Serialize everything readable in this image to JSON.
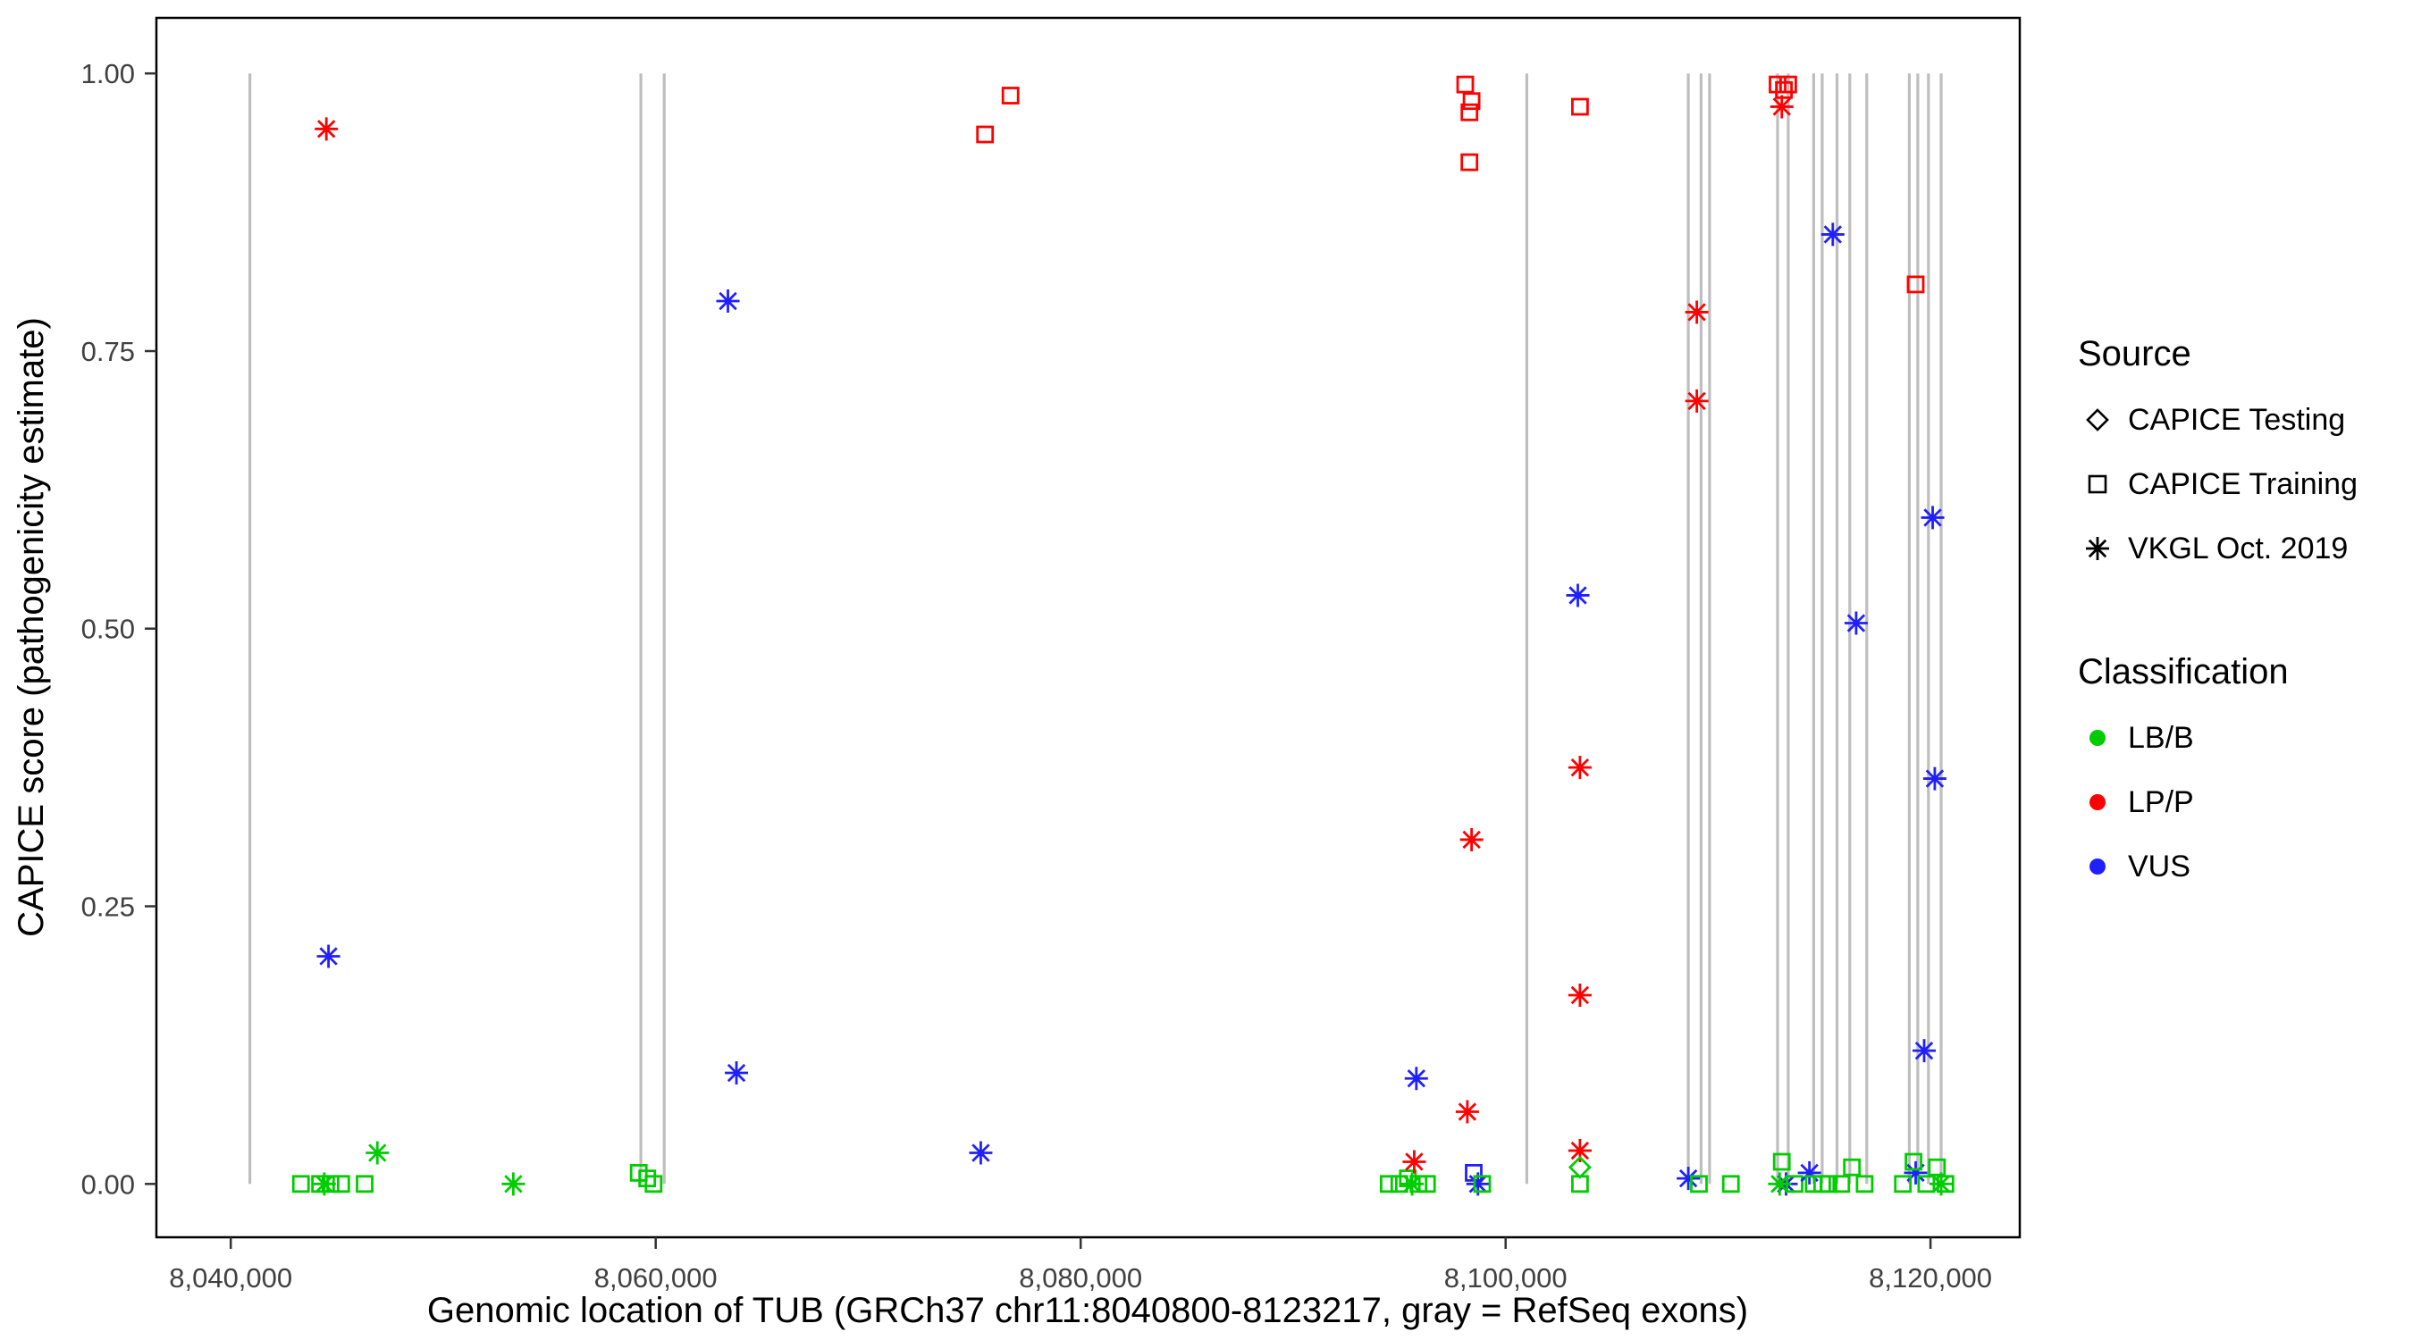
{
  "chart_data": {
    "type": "scatter",
    "title": "",
    "xlabel": "Genomic location of TUB (GRCh37 chr11:8040800-8123217, gray = RefSeq exons)",
    "ylabel": "CAPICE score (pathogenicity estimate)",
    "xlim": [
      8036500,
      8124200
    ],
    "ylim": [
      -0.048,
      1.05
    ],
    "grid": false,
    "legend_position": "right",
    "x_ticks": {
      "values": [
        8040000,
        8060000,
        8080000,
        8100000,
        8120000
      ],
      "labels": [
        "8,040,000",
        "8,060,000",
        "8,080,000",
        "8,100,000",
        "8,120,000"
      ]
    },
    "y_ticks": {
      "values": [
        0.0,
        0.25,
        0.5,
        0.75,
        1.0
      ],
      "labels": [
        "0.00",
        "0.25",
        "0.50",
        "0.75",
        "1.00"
      ]
    },
    "exon_color": "#BEBEBE",
    "exons": [
      8040900,
      8059300,
      8060400,
      8101000,
      8108600,
      8109200,
      8109600,
      8112800,
      8113300,
      8114500,
      8114900,
      8115600,
      8116200,
      8117000,
      8119000,
      8119400,
      8119900,
      8120500
    ],
    "class_colors": {
      "LB/B": "#00CC00",
      "LP/P": "#FF0000",
      "VUS": "#2020FF"
    },
    "source_shapes": {
      "CAPICE Testing": "diamond-open",
      "CAPICE Training": "square-open",
      "VKGL Oct. 2019": "asterisk"
    },
    "legend": {
      "source": {
        "title": "Source",
        "items": [
          "CAPICE Testing",
          "CAPICE Training",
          "VKGL Oct. 2019"
        ]
      },
      "classification": {
        "title": "Classification",
        "items": [
          "LB/B",
          "LP/P",
          "VUS"
        ]
      }
    },
    "points": [
      {
        "x": 8044500,
        "y": 0.95,
        "source": "VKGL Oct. 2019",
        "classification": "LP/P"
      },
      {
        "x": 8044600,
        "y": 0.205,
        "source": "VKGL Oct. 2019",
        "classification": "VUS"
      },
      {
        "x": 8043300,
        "y": 0.0,
        "source": "CAPICE Training",
        "classification": "LB/B"
      },
      {
        "x": 8044200,
        "y": 0.0,
        "source": "CAPICE Training",
        "classification": "LB/B"
      },
      {
        "x": 8044700,
        "y": 0.0,
        "source": "CAPICE Training",
        "classification": "LB/B"
      },
      {
        "x": 8045200,
        "y": 0.0,
        "source": "CAPICE Training",
        "classification": "LB/B"
      },
      {
        "x": 8046300,
        "y": 0.0,
        "source": "CAPICE Training",
        "classification": "LB/B"
      },
      {
        "x": 8044400,
        "y": 0.0,
        "source": "VKGL Oct. 2019",
        "classification": "LB/B"
      },
      {
        "x": 8046900,
        "y": 0.028,
        "source": "VKGL Oct. 2019",
        "classification": "LB/B"
      },
      {
        "x": 8053300,
        "y": 0.0,
        "source": "VKGL Oct. 2019",
        "classification": "LB/B"
      },
      {
        "x": 8059200,
        "y": 0.01,
        "source": "CAPICE Training",
        "classification": "LB/B"
      },
      {
        "x": 8059600,
        "y": 0.005,
        "source": "CAPICE Training",
        "classification": "LB/B"
      },
      {
        "x": 8059900,
        "y": 0.0,
        "source": "CAPICE Training",
        "classification": "LB/B"
      },
      {
        "x": 8063400,
        "y": 0.795,
        "source": "VKGL Oct. 2019",
        "classification": "VUS"
      },
      {
        "x": 8063800,
        "y": 0.1,
        "source": "VKGL Oct. 2019",
        "classification": "VUS"
      },
      {
        "x": 8075500,
        "y": 0.945,
        "source": "CAPICE Training",
        "classification": "LP/P"
      },
      {
        "x": 8076700,
        "y": 0.98,
        "source": "CAPICE Training",
        "classification": "LP/P"
      },
      {
        "x": 8075300,
        "y": 0.028,
        "source": "VKGL Oct. 2019",
        "classification": "VUS"
      },
      {
        "x": 8094500,
        "y": 0.0,
        "source": "CAPICE Training",
        "classification": "LB/B"
      },
      {
        "x": 8095000,
        "y": 0.0,
        "source": "CAPICE Training",
        "classification": "LB/B"
      },
      {
        "x": 8095400,
        "y": 0.005,
        "source": "CAPICE Training",
        "classification": "LB/B"
      },
      {
        "x": 8095900,
        "y": 0.0,
        "source": "CAPICE Training",
        "classification": "LB/B"
      },
      {
        "x": 8096300,
        "y": 0.0,
        "source": "CAPICE Training",
        "classification": "LB/B"
      },
      {
        "x": 8095600,
        "y": 0.0,
        "source": "VKGL Oct. 2019",
        "classification": "LB/B"
      },
      {
        "x": 8095700,
        "y": 0.02,
        "source": "VKGL Oct. 2019",
        "classification": "LP/P"
      },
      {
        "x": 8095800,
        "y": 0.095,
        "source": "VKGL Oct. 2019",
        "classification": "VUS"
      },
      {
        "x": 8098200,
        "y": 0.065,
        "source": "VKGL Oct. 2019",
        "classification": "LP/P"
      },
      {
        "x": 8098400,
        "y": 0.31,
        "source": "VKGL Oct. 2019",
        "classification": "LP/P"
      },
      {
        "x": 8098100,
        "y": 0.99,
        "source": "CAPICE Training",
        "classification": "LP/P"
      },
      {
        "x": 8098400,
        "y": 0.975,
        "source": "CAPICE Training",
        "classification": "LP/P"
      },
      {
        "x": 8098300,
        "y": 0.965,
        "source": "CAPICE Training",
        "classification": "LP/P"
      },
      {
        "x": 8098300,
        "y": 0.92,
        "source": "CAPICE Training",
        "classification": "LP/P"
      },
      {
        "x": 8098500,
        "y": 0.01,
        "source": "CAPICE Training",
        "classification": "VUS"
      },
      {
        "x": 8098700,
        "y": 0.0,
        "source": "VKGL Oct. 2019",
        "classification": "VUS"
      },
      {
        "x": 8098900,
        "y": 0.0,
        "source": "CAPICE Training",
        "classification": "LB/B"
      },
      {
        "x": 8103500,
        "y": 0.97,
        "source": "CAPICE Training",
        "classification": "LP/P"
      },
      {
        "x": 8103400,
        "y": 0.53,
        "source": "VKGL Oct. 2019",
        "classification": "VUS"
      },
      {
        "x": 8103500,
        "y": 0.375,
        "source": "VKGL Oct. 2019",
        "classification": "LP/P"
      },
      {
        "x": 8103500,
        "y": 0.17,
        "source": "VKGL Oct. 2019",
        "classification": "LP/P"
      },
      {
        "x": 8103500,
        "y": 0.03,
        "source": "VKGL Oct. 2019",
        "classification": "LP/P"
      },
      {
        "x": 8103500,
        "y": 0.015,
        "source": "CAPICE Testing",
        "classification": "LB/B"
      },
      {
        "x": 8103500,
        "y": 0.0,
        "source": "CAPICE Training",
        "classification": "LB/B"
      },
      {
        "x": 8108600,
        "y": 0.005,
        "source": "VKGL Oct. 2019",
        "classification": "VUS"
      },
      {
        "x": 8109100,
        "y": 0.0,
        "source": "CAPICE Training",
        "classification": "LB/B"
      },
      {
        "x": 8109000,
        "y": 0.785,
        "source": "VKGL Oct. 2019",
        "classification": "LP/P"
      },
      {
        "x": 8109000,
        "y": 0.705,
        "source": "VKGL Oct. 2019",
        "classification": "LP/P"
      },
      {
        "x": 8110600,
        "y": 0.0,
        "source": "CAPICE Training",
        "classification": "LB/B"
      },
      {
        "x": 8112800,
        "y": 0.99,
        "source": "CAPICE Training",
        "classification": "LP/P"
      },
      {
        "x": 8113100,
        "y": 0.985,
        "source": "CAPICE Training",
        "classification": "LP/P"
      },
      {
        "x": 8113300,
        "y": 0.99,
        "source": "CAPICE Training",
        "classification": "LP/P"
      },
      {
        "x": 8113000,
        "y": 0.97,
        "source": "VKGL Oct. 2019",
        "classification": "LP/P"
      },
      {
        "x": 8113000,
        "y": 0.02,
        "source": "CAPICE Training",
        "classification": "LB/B"
      },
      {
        "x": 8113200,
        "y": 0.0,
        "source": "VKGL Oct. 2019",
        "classification": "VUS"
      },
      {
        "x": 8112900,
        "y": 0.0,
        "source": "VKGL Oct. 2019",
        "classification": "LB/B"
      },
      {
        "x": 8113600,
        "y": 0.0,
        "source": "CAPICE Training",
        "classification": "LB/B"
      },
      {
        "x": 8114300,
        "y": 0.01,
        "source": "VKGL Oct. 2019",
        "classification": "VUS"
      },
      {
        "x": 8114500,
        "y": 0.0,
        "source": "CAPICE Training",
        "classification": "LB/B"
      },
      {
        "x": 8114900,
        "y": 0.0,
        "source": "CAPICE Training",
        "classification": "LB/B"
      },
      {
        "x": 8115400,
        "y": 0.855,
        "source": "VKGL Oct. 2019",
        "classification": "VUS"
      },
      {
        "x": 8116500,
        "y": 0.505,
        "source": "VKGL Oct. 2019",
        "classification": "VUS"
      },
      {
        "x": 8115200,
        "y": 0.0,
        "source": "CAPICE Training",
        "classification": "LB/B"
      },
      {
        "x": 8115800,
        "y": 0.0,
        "source": "CAPICE Training",
        "classification": "LB/B"
      },
      {
        "x": 8116300,
        "y": 0.015,
        "source": "CAPICE Training",
        "classification": "LB/B"
      },
      {
        "x": 8116900,
        "y": 0.0,
        "source": "CAPICE Training",
        "classification": "LB/B"
      },
      {
        "x": 8119300,
        "y": 0.81,
        "source": "CAPICE Training",
        "classification": "LP/P"
      },
      {
        "x": 8120100,
        "y": 0.6,
        "source": "VKGL Oct. 2019",
        "classification": "VUS"
      },
      {
        "x": 8120200,
        "y": 0.365,
        "source": "VKGL Oct. 2019",
        "classification": "VUS"
      },
      {
        "x": 8119700,
        "y": 0.12,
        "source": "VKGL Oct. 2019",
        "classification": "VUS"
      },
      {
        "x": 8119300,
        "y": 0.01,
        "source": "VKGL Oct. 2019",
        "classification": "VUS"
      },
      {
        "x": 8118700,
        "y": 0.0,
        "source": "CAPICE Training",
        "classification": "LB/B"
      },
      {
        "x": 8119200,
        "y": 0.02,
        "source": "CAPICE Training",
        "classification": "LB/B"
      },
      {
        "x": 8119800,
        "y": 0.0,
        "source": "CAPICE Training",
        "classification": "LB/B"
      },
      {
        "x": 8120300,
        "y": 0.015,
        "source": "CAPICE Training",
        "classification": "LB/B"
      },
      {
        "x": 8120700,
        "y": 0.0,
        "source": "CAPICE Training",
        "classification": "LB/B"
      },
      {
        "x": 8120500,
        "y": 0.0,
        "source": "VKGL Oct. 2019",
        "classification": "LB/B"
      }
    ]
  }
}
